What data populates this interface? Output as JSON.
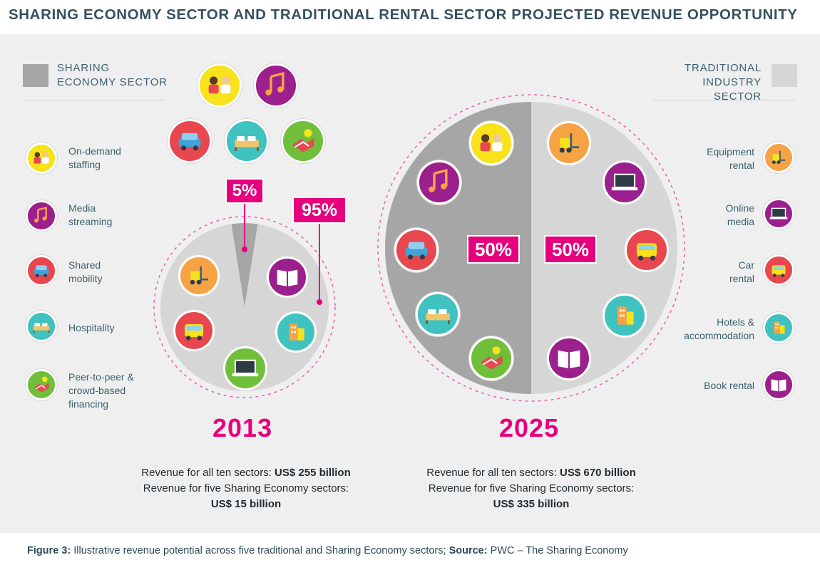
{
  "title": "SHARING ECONOMY SECTOR AND TRADITIONAL RENTAL SECTOR PROJECTED REVENUE OPPORTUNITY",
  "colors": {
    "magenta": "#e6007e",
    "sharing_gray": "#a6a6a6",
    "traditional_gray": "#d6d6d6",
    "yellow": "#f7e21b",
    "purple": "#9b1f8c",
    "red": "#e8474f",
    "teal": "#3fc2c0",
    "green": "#6fbf3a",
    "orange": "#f6a346"
  },
  "legend_left": {
    "title": "SHARING\nECONOMY SECTOR",
    "items": [
      {
        "label": "On-demand\nstaffing",
        "icon": "staffing-icon"
      },
      {
        "label": "Media\nstreaming",
        "icon": "music-icon"
      },
      {
        "label": "Shared\nmobility",
        "icon": "car-icon"
      },
      {
        "label": "Hospitality",
        "icon": "bed-icon"
      },
      {
        "label": "Peer-to-peer &\ncrowd-based\nfinancing",
        "icon": "handshake-icon"
      }
    ]
  },
  "legend_right": {
    "title": "TRADITIONAL\nINDUSTRY SECTOR",
    "items": [
      {
        "label": "Equipment\nrental",
        "icon": "forklift-icon"
      },
      {
        "label": "Online\nmedia",
        "icon": "laptop-icon"
      },
      {
        "label": "Car\nrental",
        "icon": "car-rental-icon"
      },
      {
        "label": "Hotels &\naccommodation",
        "icon": "hotel-icon"
      },
      {
        "label": "Book rental",
        "icon": "book-icon"
      }
    ]
  },
  "pies": [
    {
      "year": "2013",
      "sharing_share": 0.05,
      "sharing_label": "5%",
      "traditional_label": "95%"
    },
    {
      "year": "2025",
      "sharing_share": 0.5,
      "sharing_label": "50%",
      "traditional_label": "50%"
    }
  ],
  "revenue": {
    "y2013": {
      "line1_prefix": "Revenue for all ten sectors: ",
      "line1_value": "US$ 255 billion",
      "line2": "Revenue for five Sharing Economy sectors:",
      "line3_value": "US$ 15 billion"
    },
    "y2025": {
      "line1_prefix": "Revenue for all ten sectors: ",
      "line1_value": "US$ 670 billion",
      "line2": "Revenue for five Sharing Economy sectors:",
      "line3_value": "US$ 335 billion"
    }
  },
  "caption": {
    "figure_label": "Figure 3:",
    "text": " Illustrative revenue potential across five traditional and Sharing Economy sectors; ",
    "source_label": "Source:",
    "source_text": " PWC – The Sharing Economy"
  }
}
